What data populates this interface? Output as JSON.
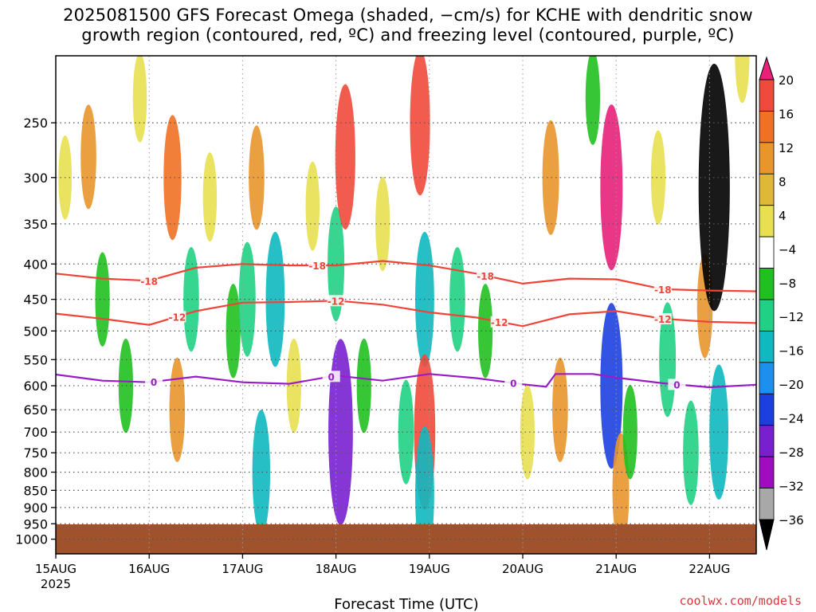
{
  "title_line1": "2025081500 GFS Forecast Omega (shaded, −cm/s) for KCHE with dendritic snow",
  "title_line2": "growth region (contoured, red, ºC) and freezing level (contoured, purple, ºC)",
  "credit": "coolwx.com/models",
  "colors": {
    "isotherm_cold": "#f04438",
    "freezing_level": "#9a1cc8",
    "ground": "#a0522d",
    "grid": "#555555"
  },
  "chart_data": {
    "type": "heatmap",
    "title": "2025081500 GFS Forecast Omega (shaded, −cm/s) for KCHE with dendritic snow growth region (contoured, red, ºC) and freezing level (contoured, purple, ºC)",
    "xlabel": "Forecast Time (UTC)",
    "ylabel": "",
    "x_ticks": [
      {
        "label": "15AUG",
        "sub": "2025",
        "day": 0
      },
      {
        "label": "16AUG",
        "sub": "",
        "day": 1
      },
      {
        "label": "17AUG",
        "sub": "",
        "day": 2
      },
      {
        "label": "18AUG",
        "sub": "",
        "day": 3
      },
      {
        "label": "19AUG",
        "sub": "",
        "day": 4
      },
      {
        "label": "20AUG",
        "sub": "",
        "day": 5
      },
      {
        "label": "21AUG",
        "sub": "",
        "day": 6
      },
      {
        "label": "22AUG",
        "sub": "",
        "day": 7
      }
    ],
    "xlim_days": [
      0,
      7.5
    ],
    "y_ticks": [
      250,
      300,
      350,
      400,
      450,
      500,
      550,
      600,
      650,
      700,
      750,
      800,
      850,
      900,
      950,
      1000
    ],
    "ylim_hpa": [
      200,
      1050
    ],
    "y_scale": "log-pressure",
    "colorbar": {
      "labels": [
        "20",
        "16",
        "12",
        "8",
        "4",
        "−4",
        "−8",
        "−12",
        "−16",
        "−20",
        "−24",
        "−28",
        "−32",
        "−36"
      ],
      "colors": [
        "#e8207a",
        "#f04a3c",
        "#f07024",
        "#e8962c",
        "#e0b838",
        "#e8e050",
        "#ffffff",
        "#20c020",
        "#20d084",
        "#10b8c0",
        "#1c90ec",
        "#1c40e0",
        "#7820d0",
        "#a00cc0",
        "#a8a8a8",
        "#000000"
      ]
    },
    "omega_cells": [
      {
        "day": 0.1,
        "hpa": 300,
        "omega": 4
      },
      {
        "day": 0.35,
        "hpa": 280,
        "omega": 8
      },
      {
        "day": 0.5,
        "hpa": 450,
        "omega": -6
      },
      {
        "day": 0.75,
        "hpa": 600,
        "omega": -6
      },
      {
        "day": 0.9,
        "hpa": 230,
        "omega": 5
      },
      {
        "day": 1.25,
        "hpa": 300,
        "omega": 12
      },
      {
        "day": 1.3,
        "hpa": 650,
        "omega": 8
      },
      {
        "day": 1.45,
        "hpa": 450,
        "omega": -8
      },
      {
        "day": 1.65,
        "hpa": 320,
        "omega": 5
      },
      {
        "day": 1.9,
        "hpa": 500,
        "omega": -6
      },
      {
        "day": 2.05,
        "hpa": 450,
        "omega": -10
      },
      {
        "day": 2.15,
        "hpa": 300,
        "omega": 8
      },
      {
        "day": 2.2,
        "hpa": 800,
        "omega": -12
      },
      {
        "day": 2.35,
        "hpa": 450,
        "omega": -14
      },
      {
        "day": 2.55,
        "hpa": 600,
        "omega": 6
      },
      {
        "day": 2.75,
        "hpa": 330,
        "omega": 5
      },
      {
        "day": 3.0,
        "hpa": 400,
        "omega": -10
      },
      {
        "day": 3.05,
        "hpa": 700,
        "omega": -24
      },
      {
        "day": 3.1,
        "hpa": 280,
        "omega": 16
      },
      {
        "day": 3.3,
        "hpa": 600,
        "omega": -6
      },
      {
        "day": 3.5,
        "hpa": 350,
        "omega": 6
      },
      {
        "day": 3.75,
        "hpa": 700,
        "omega": -8
      },
      {
        "day": 3.9,
        "hpa": 250,
        "omega": 16
      },
      {
        "day": 3.95,
        "hpa": 450,
        "omega": -14
      },
      {
        "day": 3.95,
        "hpa": 700,
        "omega": 18
      },
      {
        "day": 3.95,
        "hpa": 860,
        "omega": -14
      },
      {
        "day": 4.3,
        "hpa": 450,
        "omega": -8
      },
      {
        "day": 4.6,
        "hpa": 500,
        "omega": -6
      },
      {
        "day": 5.05,
        "hpa": 700,
        "omega": 6
      },
      {
        "day": 5.3,
        "hpa": 300,
        "omega": 10
      },
      {
        "day": 5.4,
        "hpa": 650,
        "omega": 8
      },
      {
        "day": 5.75,
        "hpa": 230,
        "omega": -6
      },
      {
        "day": 5.95,
        "hpa": 310,
        "omega": 20
      },
      {
        "day": 5.95,
        "hpa": 600,
        "omega": -20
      },
      {
        "day": 6.05,
        "hpa": 850,
        "omega": 10
      },
      {
        "day": 6.15,
        "hpa": 700,
        "omega": -6
      },
      {
        "day": 6.45,
        "hpa": 300,
        "omega": 6
      },
      {
        "day": 6.55,
        "hpa": 550,
        "omega": -10
      },
      {
        "day": 6.8,
        "hpa": 750,
        "omega": -8
      },
      {
        "day": 6.95,
        "hpa": 460,
        "omega": 8
      },
      {
        "day": 7.05,
        "hpa": 310,
        "omega": -36
      },
      {
        "day": 7.1,
        "hpa": 700,
        "omega": -14
      },
      {
        "day": 7.35,
        "hpa": 200,
        "omega": 6
      }
    ],
    "contours": [
      {
        "level": -18,
        "kind": "dendritic",
        "points": [
          [
            0,
            413
          ],
          [
            0.5,
            420
          ],
          [
            1.0,
            423
          ],
          [
            1.5,
            405
          ],
          [
            2.0,
            400
          ],
          [
            2.5,
            402
          ],
          [
            3.0,
            402
          ],
          [
            3.5,
            396
          ],
          [
            4.0,
            402
          ],
          [
            4.5,
            413
          ],
          [
            5.0,
            427
          ],
          [
            5.5,
            420
          ],
          [
            6.0,
            421
          ],
          [
            6.5,
            435
          ],
          [
            7.0,
            437
          ],
          [
            7.5,
            438
          ]
        ],
        "labels": [
          {
            "day": 1.0,
            "text": "-18"
          },
          {
            "day": 2.8,
            "text": "-18"
          },
          {
            "day": 4.6,
            "text": "-18"
          },
          {
            "day": 6.5,
            "text": "-18"
          }
        ]
      },
      {
        "level": -12,
        "kind": "dendritic",
        "points": [
          [
            0,
            472
          ],
          [
            0.5,
            480
          ],
          [
            1.0,
            490
          ],
          [
            1.5,
            468
          ],
          [
            2.0,
            455
          ],
          [
            2.5,
            454
          ],
          [
            3.0,
            452
          ],
          [
            3.5,
            458
          ],
          [
            4.0,
            470
          ],
          [
            4.5,
            478
          ],
          [
            5.0,
            492
          ],
          [
            5.5,
            473
          ],
          [
            6.0,
            468
          ],
          [
            6.5,
            480
          ],
          [
            7.0,
            485
          ],
          [
            7.5,
            487
          ]
        ],
        "labels": [
          {
            "day": 1.3,
            "text": "-12"
          },
          {
            "day": 3.0,
            "text": "-12"
          },
          {
            "day": 4.75,
            "text": "-12"
          },
          {
            "day": 6.5,
            "text": "-12"
          }
        ]
      },
      {
        "level": 0,
        "kind": "freezing",
        "points": [
          [
            0,
            578
          ],
          [
            0.5,
            590
          ],
          [
            1.0,
            593
          ],
          [
            1.5,
            582
          ],
          [
            2.0,
            593
          ],
          [
            2.5,
            596
          ],
          [
            3.0,
            580
          ],
          [
            3.5,
            590
          ],
          [
            4.0,
            577
          ],
          [
            4.5,
            585
          ],
          [
            5.0,
            597
          ],
          [
            5.25,
            602
          ],
          [
            5.35,
            577
          ],
          [
            5.75,
            577
          ],
          [
            6.0,
            584
          ],
          [
            6.5,
            595
          ],
          [
            7.0,
            603
          ],
          [
            7.5,
            598
          ]
        ],
        "labels": [
          {
            "day": 1.05,
            "text": "0"
          },
          {
            "day": 2.95,
            "text": "0"
          },
          {
            "day": 4.9,
            "text": "0"
          },
          {
            "day": 6.65,
            "text": "0"
          }
        ]
      }
    ]
  }
}
